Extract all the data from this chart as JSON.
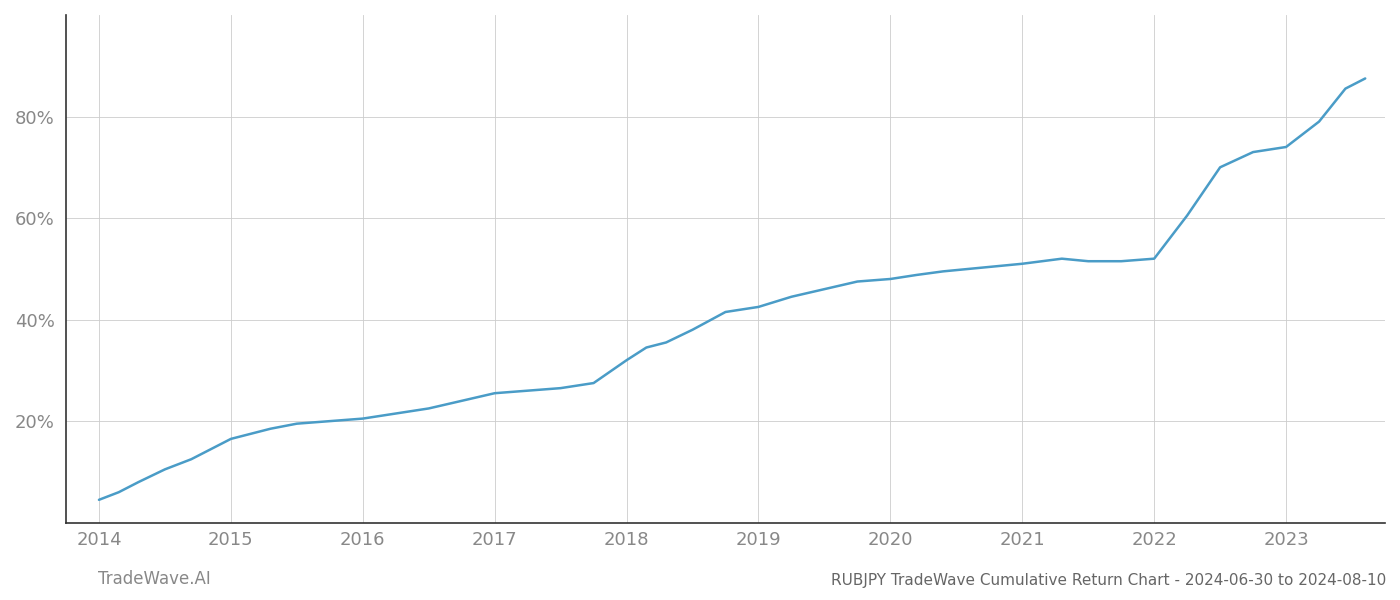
{
  "title": "RUBJPY TradeWave Cumulative Return Chart - 2024-06-30 to 2024-08-10",
  "watermark": "TradeWave.AI",
  "line_color": "#4a9cc7",
  "background_color": "#ffffff",
  "grid_color": "#cccccc",
  "x_values": [
    2014.0,
    2014.15,
    2014.3,
    2014.5,
    2014.7,
    2014.85,
    2015.0,
    2015.15,
    2015.3,
    2015.5,
    2015.75,
    2016.0,
    2016.25,
    2016.5,
    2016.75,
    2017.0,
    2017.25,
    2017.5,
    2017.75,
    2018.0,
    2018.15,
    2018.3,
    2018.5,
    2018.75,
    2019.0,
    2019.25,
    2019.5,
    2019.75,
    2020.0,
    2020.2,
    2020.4,
    2020.6,
    2020.8,
    2021.0,
    2021.15,
    2021.3,
    2021.5,
    2021.75,
    2022.0,
    2022.25,
    2022.5,
    2022.75,
    2023.0,
    2023.25,
    2023.45,
    2023.6
  ],
  "y_values": [
    4.5,
    6.0,
    8.0,
    10.5,
    12.5,
    14.5,
    16.5,
    17.5,
    18.5,
    19.5,
    20.0,
    20.5,
    21.5,
    22.5,
    24.0,
    25.5,
    26.0,
    26.5,
    27.5,
    32.0,
    34.5,
    35.5,
    38.0,
    41.5,
    42.5,
    44.5,
    46.0,
    47.5,
    48.0,
    48.8,
    49.5,
    50.0,
    50.5,
    51.0,
    51.5,
    52.0,
    51.5,
    51.5,
    52.0,
    60.5,
    70.0,
    73.0,
    74.0,
    79.0,
    85.5,
    87.5
  ],
  "xlim": [
    2013.75,
    2023.75
  ],
  "ylim": [
    0,
    100
  ],
  "yticks": [
    20,
    40,
    60,
    80
  ],
  "xticks": [
    2014,
    2015,
    2016,
    2017,
    2018,
    2019,
    2020,
    2021,
    2022,
    2023
  ],
  "tick_label_color": "#888888",
  "title_color": "#666666",
  "watermark_color": "#888888",
  "line_width": 1.8,
  "title_fontsize": 11,
  "tick_fontsize": 13,
  "watermark_fontsize": 12,
  "spine_color": "#333333"
}
